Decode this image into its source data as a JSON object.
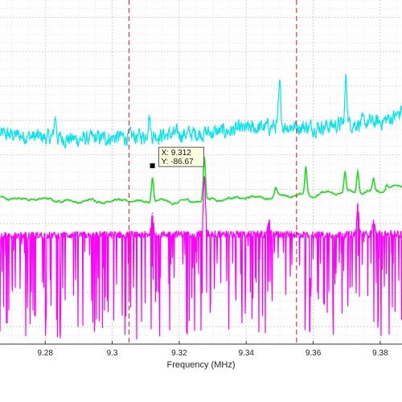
{
  "chart_data": {
    "type": "line",
    "xlabel": "Frequency (MHz)",
    "x_ticks": [
      9.28,
      9.3,
      9.32,
      9.34,
      9.36,
      9.38
    ],
    "x_tick_labels": [
      "9.28",
      "9.3",
      "9.32",
      "9.34",
      "9.36",
      "9.38"
    ],
    "xlim": [
      9.2665,
      9.3865
    ],
    "ylim": [
      -135,
      -35
    ],
    "grid": true,
    "vertical_markers": [
      9.305,
      9.355
    ],
    "datatip": {
      "x_label": "X: 9.312",
      "y_label": "Y: -86.67",
      "x": 9.312,
      "y": -86.67
    },
    "series": [
      {
        "color": "#00e5ee",
        "baseline": [
          [
            9.2665,
            -74
          ],
          [
            9.28,
            -75
          ],
          [
            9.29,
            -75.5
          ],
          [
            9.3,
            -75
          ],
          [
            9.31,
            -74.5
          ],
          [
            9.32,
            -74
          ],
          [
            9.33,
            -73.5
          ],
          [
            9.34,
            -72.5
          ],
          [
            9.35,
            -71.5
          ],
          [
            9.36,
            -72
          ],
          [
            9.37,
            -71
          ],
          [
            9.38,
            -70.5
          ],
          [
            9.3865,
            -68
          ]
        ],
        "noise": 2.2,
        "peaks": [
          [
            9.283,
            -69
          ],
          [
            9.311,
            -68.5
          ],
          [
            9.35,
            -60
          ],
          [
            9.3698,
            -57.5
          ],
          [
            9.3865,
            -66
          ]
        ]
      },
      {
        "color": "#22dd22",
        "baseline": [
          [
            9.2665,
            -92.5
          ],
          [
            9.28,
            -93
          ],
          [
            9.29,
            -93.5
          ],
          [
            9.3,
            -93.2
          ],
          [
            9.31,
            -93.5
          ],
          [
            9.32,
            -93.8
          ],
          [
            9.33,
            -92.8
          ],
          [
            9.34,
            -92.5
          ],
          [
            9.35,
            -92
          ],
          [
            9.36,
            -91.5
          ],
          [
            9.37,
            -91
          ],
          [
            9.38,
            -90.5
          ],
          [
            9.3865,
            -89
          ]
        ],
        "noise": 0.4,
        "peaks": [
          [
            9.312,
            -86.67
          ],
          [
            9.3275,
            -80.8
          ],
          [
            9.3488,
            -90
          ],
          [
            9.3578,
            -83.5
          ],
          [
            9.3695,
            -85.5
          ],
          [
            9.3733,
            -84.3
          ],
          [
            9.378,
            -87
          ],
          [
            9.382,
            -88.5
          ]
        ]
      },
      {
        "color": "#ff00ff",
        "baseline": [
          [
            9.2665,
            -103.5
          ],
          [
            9.3,
            -103.2
          ],
          [
            9.33,
            -103
          ],
          [
            9.36,
            -103.2
          ],
          [
            9.3865,
            -103
          ]
        ],
        "noise": 2.0,
        "dips": true,
        "peaks": [
          [
            9.312,
            -97
          ],
          [
            9.3275,
            -86.5
          ],
          [
            9.3468,
            -99
          ],
          [
            9.3733,
            -95
          ],
          [
            9.378,
            -99
          ]
        ]
      }
    ]
  }
}
